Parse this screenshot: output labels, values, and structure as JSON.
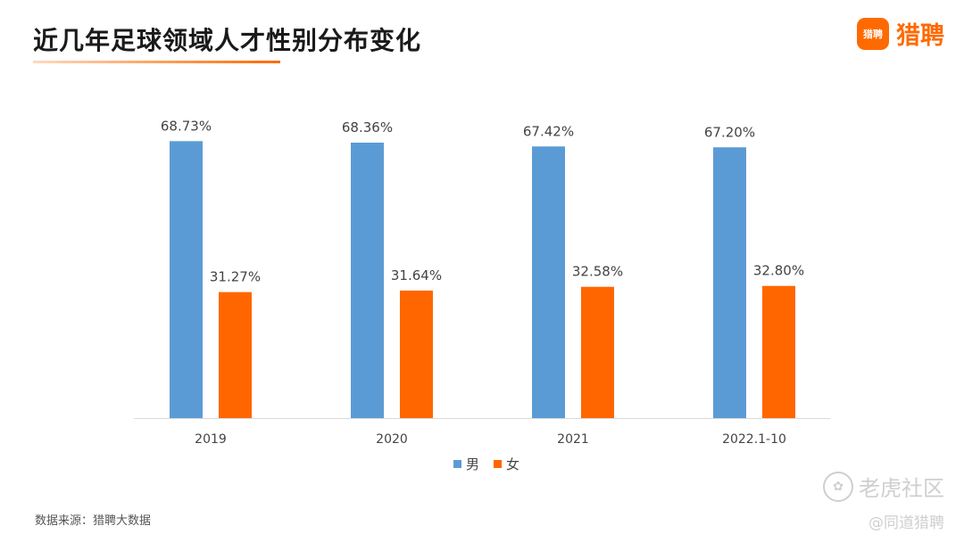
{
  "header": {
    "title": "近几年足球领域人才性别分布变化",
    "brand_name": "猎聘",
    "brand_badge_text": "猎聘"
  },
  "footer": {
    "source": "数据来源：猎聘大数据",
    "watermark": "老虎社区",
    "watermark_handle": "@同道猎聘"
  },
  "chart_data": {
    "type": "bar",
    "categories": [
      "2019",
      "2020",
      "2021",
      "2022.1-10"
    ],
    "series": [
      {
        "name": "男",
        "values": [
          68.73,
          68.36,
          67.42,
          67.2
        ],
        "labels": [
          "68.73%",
          "68.36%",
          "67.42%",
          "67.20%"
        ],
        "color": "#5b9bd5"
      },
      {
        "name": "女",
        "values": [
          31.27,
          31.64,
          32.58,
          32.8
        ],
        "labels": [
          "31.27%",
          "31.64%",
          "32.58%",
          "32.80%"
        ],
        "color": "#ff6600"
      }
    ],
    "ylim": [
      0,
      100
    ],
    "grid": false,
    "legend": "bottom"
  }
}
